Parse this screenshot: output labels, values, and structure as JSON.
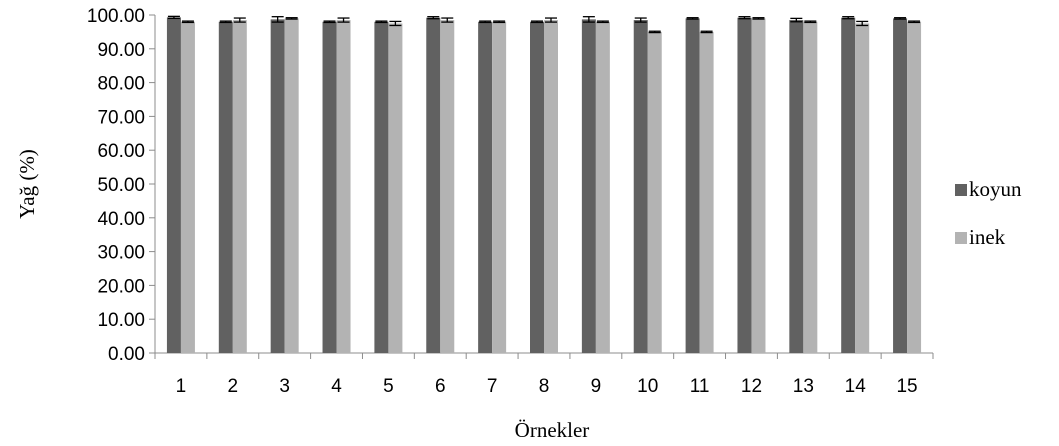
{
  "chart_data": {
    "type": "bar",
    "xlabel": "Örnekler",
    "ylabel": "Yağ (%)",
    "ylim": [
      0,
      100
    ],
    "y_tick_step": 10,
    "y_tick_labels": [
      "0.00",
      "10.00",
      "20.00",
      "30.00",
      "40.00",
      "50.00",
      "60.00",
      "70.00",
      "80.00",
      "90.00",
      "100.00"
    ],
    "categories": [
      "1",
      "2",
      "3",
      "4",
      "5",
      "6",
      "7",
      "8",
      "9",
      "10",
      "11",
      "12",
      "13",
      "14",
      "15"
    ],
    "series": [
      {
        "name": "koyun",
        "color": "#616161",
        "values": [
          99.3,
          98.0,
          98.7,
          98.0,
          98.0,
          99.2,
          98.0,
          98.0,
          98.7,
          98.5,
          99.0,
          99.2,
          98.5,
          99.2,
          99.0
        ],
        "errors": [
          0.3,
          0.2,
          0.8,
          0.2,
          0.2,
          0.3,
          0.2,
          0.2,
          0.8,
          0.6,
          0.2,
          0.3,
          0.5,
          0.3,
          0.2
        ]
      },
      {
        "name": "inek",
        "color": "#b3b3b3",
        "values": [
          98.0,
          98.5,
          99.0,
          98.5,
          97.5,
          98.5,
          98.0,
          98.5,
          98.0,
          95.0,
          95.0,
          99.0,
          98.0,
          97.5,
          98.0
        ],
        "errors": [
          0.2,
          0.6,
          0.2,
          0.6,
          0.6,
          0.6,
          0.2,
          0.6,
          0.2,
          0.2,
          0.2,
          0.2,
          0.2,
          0.6,
          0.2
        ]
      }
    ],
    "grid": false,
    "legend_position": "right"
  }
}
